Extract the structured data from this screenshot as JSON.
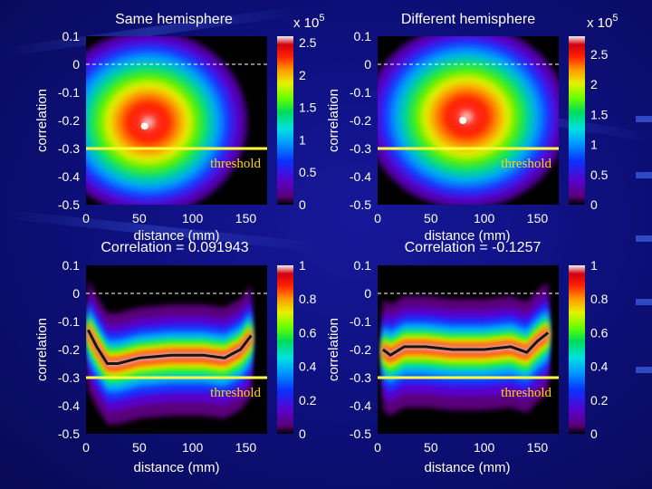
{
  "chart_data": [
    {
      "type": "heatmap",
      "title": "Same hemisphere",
      "xlabel": "distance (mm)",
      "ylabel": "correlation",
      "xticks": [
        "0",
        "50",
        "100",
        "150"
      ],
      "yticks": [
        "0.1",
        "0",
        "-0.1",
        "-0.2",
        "-0.3",
        "-0.4",
        "-0.5"
      ],
      "xlim": [
        0,
        170
      ],
      "ylim": [
        -0.5,
        0.1
      ],
      "zero_line": 0,
      "threshold": {
        "value": -0.3,
        "label": "threshold"
      },
      "colorbar": {
        "min": 0,
        "max": 2.6,
        "ticks": [
          "0",
          "0.5",
          "1",
          "1.5",
          "2",
          "2.5"
        ],
        "exponent_label": "x 10",
        "exponent": "5"
      },
      "peak": {
        "x": 55,
        "y": -0.22
      }
    },
    {
      "type": "heatmap",
      "title": "Different hemisphere",
      "xlabel": "distance (mm)",
      "ylabel": "correlation",
      "xticks": [
        "0",
        "50",
        "100",
        "150"
      ],
      "yticks": [
        "0.1",
        "0",
        "-0.1",
        "-0.2",
        "-0.3",
        "-0.4",
        "-0.5"
      ],
      "xlim": [
        0,
        170
      ],
      "ylim": [
        -0.5,
        0.1
      ],
      "zero_line": 0,
      "threshold": {
        "value": -0.3,
        "label": "threshold"
      },
      "colorbar": {
        "min": 0,
        "max": 2.8,
        "ticks": [
          "0",
          "0.5",
          "1",
          "1.5",
          "2",
          "2.5"
        ],
        "exponent_label": "x 10",
        "exponent": "5"
      },
      "peak": {
        "x": 80,
        "y": -0.2
      }
    },
    {
      "type": "heatmap",
      "title": "Correlation = 0.091943",
      "xlabel": "distance (mm)",
      "ylabel": "correlation",
      "xticks": [
        "0",
        "50",
        "100",
        "150"
      ],
      "yticks": [
        "0.1",
        "0",
        "-0.1",
        "-0.2",
        "-0.3",
        "-0.4",
        "-0.5"
      ],
      "xlim": [
        0,
        170
      ],
      "ylim": [
        -0.5,
        0.1
      ],
      "zero_line": 0,
      "threshold": {
        "value": -0.3,
        "label": "threshold"
      },
      "colorbar": {
        "min": 0,
        "max": 1,
        "ticks": [
          "0",
          "0.2",
          "0.4",
          "0.6",
          "0.8",
          "1"
        ],
        "exponent_label": "",
        "exponent": ""
      },
      "ridge": {
        "x": [
          2,
          10,
          20,
          30,
          50,
          80,
          110,
          130,
          145,
          155
        ],
        "y": [
          -0.13,
          -0.19,
          -0.25,
          -0.25,
          -0.23,
          -0.22,
          -0.22,
          -0.23,
          -0.2,
          -0.15
        ]
      }
    },
    {
      "type": "heatmap",
      "title": "Correlation = -0.1257",
      "xlabel": "distance (mm)",
      "ylabel": "correlation",
      "xticks": [
        "0",
        "50",
        "100",
        "150"
      ],
      "yticks": [
        "0.1",
        "0",
        "-0.1",
        "-0.2",
        "-0.3",
        "-0.4",
        "-0.5"
      ],
      "xlim": [
        0,
        170
      ],
      "ylim": [
        -0.5,
        0.1
      ],
      "zero_line": 0,
      "threshold": {
        "value": -0.3,
        "label": "threshold"
      },
      "colorbar": {
        "min": 0,
        "max": 1,
        "ticks": [
          "0",
          "0.2",
          "0.4",
          "0.6",
          "0.8",
          "1"
        ],
        "exponent_label": "",
        "exponent": ""
      },
      "ridge": {
        "x": [
          5,
          12,
          25,
          45,
          70,
          100,
          125,
          140,
          150,
          160
        ],
        "y": [
          -0.2,
          -0.22,
          -0.19,
          -0.19,
          -0.2,
          -0.2,
          -0.19,
          -0.21,
          -0.17,
          -0.14
        ]
      }
    }
  ],
  "colors": {
    "background": "#0e1080",
    "threshold_line": "#ffff3c",
    "threshold_text": "#ffd700",
    "plot_bg": "#000000"
  }
}
